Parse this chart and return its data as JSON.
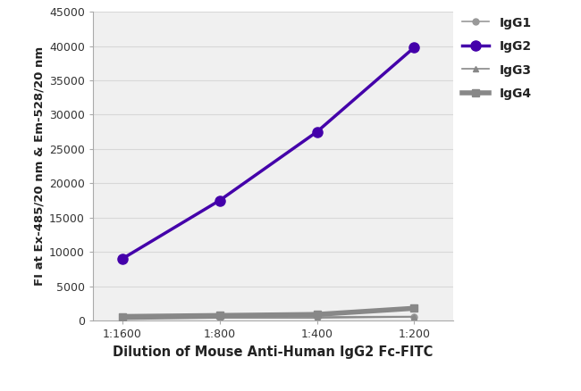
{
  "x_labels": [
    "1:1600",
    "1:800",
    "1:400",
    "1:200"
  ],
  "x_positions": [
    0,
    1,
    2,
    3
  ],
  "series": {
    "IgG1": {
      "values": [
        450,
        600,
        550,
        600
      ],
      "color": "#999999",
      "marker": "o",
      "markersize": 5,
      "linewidth": 1.2,
      "zorder": 2
    },
    "IgG2": {
      "values": [
        9000,
        17500,
        27500,
        39800
      ],
      "color": "#4400aa",
      "marker": "o",
      "markersize": 8,
      "linewidth": 2.5,
      "zorder": 4
    },
    "IgG3": {
      "values": [
        200,
        400,
        400,
        550
      ],
      "color": "#888888",
      "marker": "^",
      "markersize": 5,
      "linewidth": 1.2,
      "zorder": 2
    },
    "IgG4": {
      "values": [
        600,
        750,
        900,
        1800
      ],
      "color": "#888888",
      "marker": "s",
      "markersize": 6,
      "linewidth": 4.0,
      "zorder": 3
    }
  },
  "xlabel": "Dilution of Mouse Anti-Human IgG2 Fc-FITC",
  "ylabel": "FI at Ex-485/20 nm & Em-528/20 nm",
  "ylim": [
    0,
    45000
  ],
  "yticks": [
    0,
    5000,
    10000,
    15000,
    20000,
    25000,
    30000,
    35000,
    40000,
    45000
  ],
  "ytick_labels": [
    "0",
    "5000",
    "10000",
    "15000",
    "20000",
    "25000",
    "30000",
    "35000",
    "40000",
    "45000"
  ],
  "legend_order": [
    "IgG1",
    "IgG2",
    "IgG3",
    "IgG4"
  ],
  "background_color": "#ffffff",
  "plot_bg_color": "#f0f0f0",
  "grid_color": "#d8d8d8",
  "xlabel_fontsize": 10.5,
  "ylabel_fontsize": 9.5,
  "tick_fontsize": 9,
  "legend_fontsize": 10
}
